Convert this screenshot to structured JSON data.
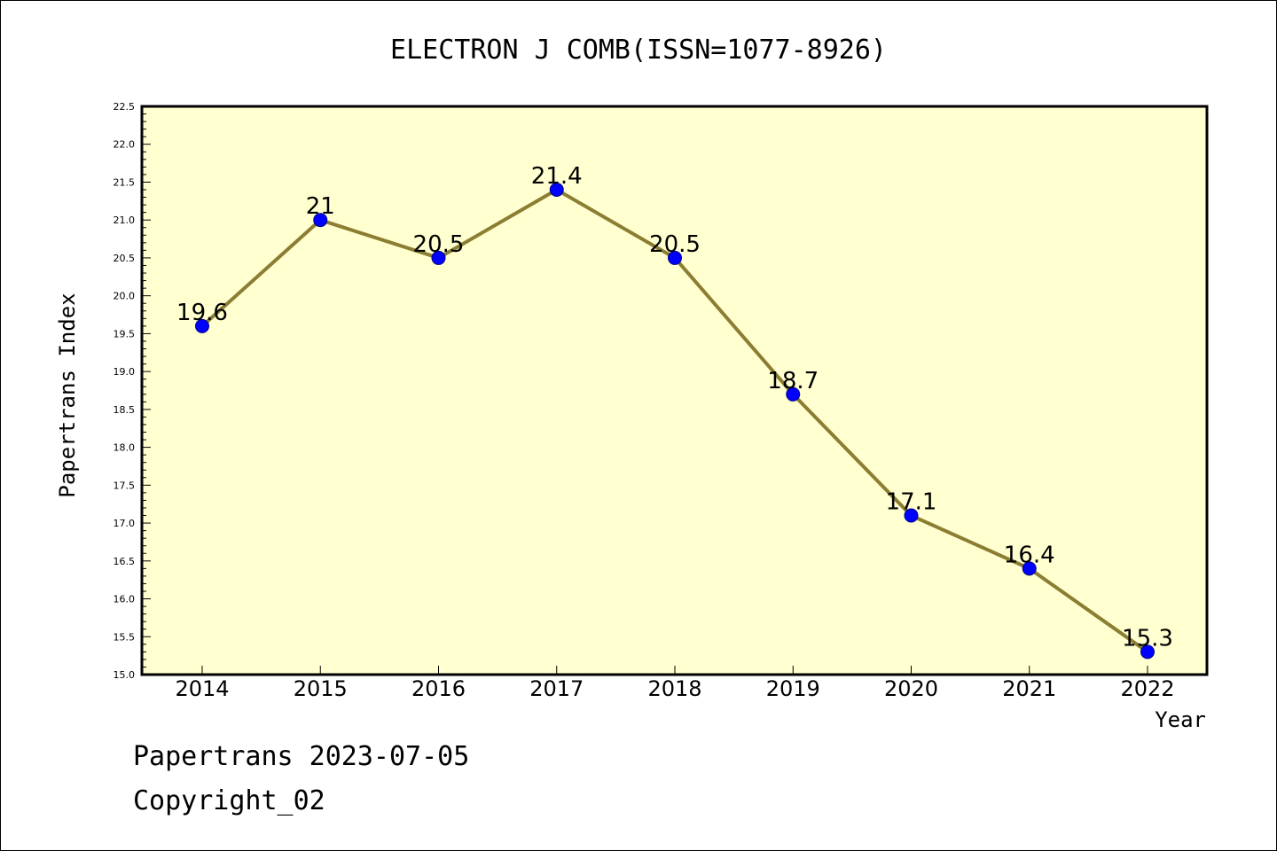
{
  "chart_data": {
    "type": "line",
    "title": "ELECTRON J COMB(ISSN=1077-8926)",
    "xlabel": "Year",
    "ylabel": "Papertrans Index",
    "categories": [
      "2014",
      "2015",
      "2016",
      "2017",
      "2018",
      "2019",
      "2020",
      "2021",
      "2022"
    ],
    "series": [
      {
        "values": [
          19.6,
          21.0,
          20.5,
          21.4,
          20.5,
          18.7,
          17.1,
          16.4,
          15.3
        ],
        "labels": [
          "19.6",
          "21",
          "20.5",
          "21.4",
          "20.5",
          "18.7",
          "17.1",
          "16.4",
          "15.3"
        ],
        "line_color": "#8b7d32",
        "marker_color": "#0000ff"
      }
    ],
    "ylim": [
      15.0,
      22.5
    ],
    "yticks": [
      "15.0",
      "15.5",
      "16.0",
      "16.5",
      "17.0",
      "17.5",
      "18.0",
      "18.5",
      "19.0",
      "19.5",
      "20.0",
      "20.5",
      "21.0",
      "21.5",
      "22.0",
      "22.5"
    ],
    "plot_background": "#ffffd0",
    "grid": false,
    "legend": "none"
  },
  "footer": {
    "line1": "Papertrans 2023-07-05",
    "line2": "Copyright_02"
  }
}
